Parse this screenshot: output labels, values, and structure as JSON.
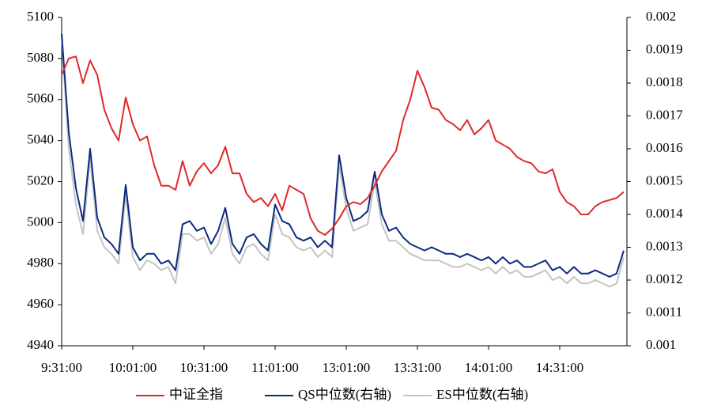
{
  "chart_data": {
    "type": "line",
    "categories": [
      "9:31:00",
      null,
      null,
      null,
      null,
      null,
      null,
      null,
      null,
      null,
      "10:01:00",
      null,
      null,
      null,
      null,
      null,
      null,
      null,
      null,
      null,
      "10:31:00",
      null,
      null,
      null,
      null,
      null,
      null,
      null,
      null,
      null,
      "11:01:00",
      null,
      null,
      null,
      null,
      null,
      null,
      null,
      null,
      null,
      "13:01:00",
      null,
      null,
      null,
      null,
      null,
      null,
      null,
      null,
      null,
      "13:31:00",
      null,
      null,
      null,
      null,
      null,
      null,
      null,
      null,
      null,
      "14:01:00",
      null,
      null,
      null,
      null,
      null,
      null,
      null,
      null,
      null,
      "14:31:00",
      null,
      null,
      null,
      null,
      null,
      null,
      null,
      null,
      null
    ],
    "ylim": [
      4940,
      5100
    ],
    "yticks": [
      4940,
      4960,
      4980,
      5000,
      5020,
      5040,
      5060,
      5080,
      5100
    ],
    "y2lim": [
      0.001,
      0.002
    ],
    "y2ticks": [
      0.001,
      0.0011,
      0.0012,
      0.0013,
      0.0014,
      0.0015,
      0.0016,
      0.0017,
      0.0018,
      0.0019,
      0.002
    ],
    "legend": "bottom",
    "grid": false,
    "series": [
      {
        "name": "中证全指",
        "color": "#e0282a",
        "values": [
          5072,
          5080,
          5081,
          5068,
          5079,
          5072,
          5055,
          5046,
          5040,
          5061,
          5048,
          5040,
          5042,
          5028,
          5018,
          5018,
          5016,
          5030,
          5018,
          5025,
          5029,
          5024,
          5028,
          5037,
          5024,
          5024,
          5014,
          5010,
          5012,
          5008,
          5014,
          5006,
          5018,
          5016,
          5014,
          5002,
          4996,
          4994,
          4997,
          5002,
          5008,
          5010,
          5009,
          5012,
          5018,
          5025,
          5030,
          5035,
          5050,
          5060,
          5074,
          5066,
          5056,
          5055,
          5050,
          5048,
          5045,
          5050,
          5043,
          5046,
          5050,
          5040,
          5038,
          5036,
          5032,
          5030,
          5029,
          5025,
          5024,
          5026,
          5015,
          5010,
          5008,
          5004,
          5004,
          5008,
          5010,
          5011,
          5012,
          5015
        ]
      },
      {
        "name": "QS中位数(右轴)",
        "color": "#0c2a80",
        "axis": "y2",
        "values": [
          0.00195,
          0.00165,
          0.00148,
          0.00138,
          0.0016,
          0.00139,
          0.00133,
          0.00131,
          0.00128,
          0.00149,
          0.0013,
          0.00126,
          0.00128,
          0.00128,
          0.00125,
          0.00126,
          0.00123,
          0.00137,
          0.00138,
          0.00135,
          0.00136,
          0.00131,
          0.00135,
          0.00142,
          0.00131,
          0.00128,
          0.00133,
          0.00134,
          0.00131,
          0.00129,
          0.00143,
          0.00138,
          0.00137,
          0.00133,
          0.00132,
          0.00133,
          0.0013,
          0.00132,
          0.0013,
          0.00158,
          0.00145,
          0.00138,
          0.00139,
          0.00141,
          0.00153,
          0.0014,
          0.00135,
          0.00136,
          0.00133,
          0.00131,
          0.0013,
          0.00129,
          0.0013,
          0.00129,
          0.00128,
          0.00128,
          0.00127,
          0.00128,
          0.00127,
          0.00126,
          0.00127,
          0.00125,
          0.00127,
          0.00125,
          0.00126,
          0.00124,
          0.00124,
          0.00125,
          0.00126,
          0.00123,
          0.00124,
          0.00122,
          0.00124,
          0.00122,
          0.00122,
          0.00123,
          0.00122,
          0.00121,
          0.00122,
          0.00129
        ]
      },
      {
        "name": "ES中位数(右轴)",
        "color": "#c4c4c4",
        "axis": "y2",
        "values": [
          0.00194,
          0.0016,
          0.00143,
          0.00134,
          0.00157,
          0.00135,
          0.0013,
          0.00128,
          0.00125,
          0.00146,
          0.00127,
          0.00123,
          0.00126,
          0.00125,
          0.00123,
          0.00124,
          0.00119,
          0.00134,
          0.00134,
          0.00132,
          0.00133,
          0.00128,
          0.00131,
          0.00139,
          0.00128,
          0.00125,
          0.0013,
          0.00131,
          0.00128,
          0.00126,
          0.0014,
          0.00134,
          0.00133,
          0.0013,
          0.00129,
          0.0013,
          0.00127,
          0.00129,
          0.00127,
          0.00155,
          0.00142,
          0.00135,
          0.00136,
          0.00137,
          0.0015,
          0.00137,
          0.00132,
          0.00132,
          0.0013,
          0.00128,
          0.00127,
          0.00126,
          0.00126,
          0.00126,
          0.00125,
          0.00124,
          0.00124,
          0.00125,
          0.00124,
          0.00123,
          0.00124,
          0.00122,
          0.00124,
          0.00122,
          0.00123,
          0.00121,
          0.00121,
          0.00122,
          0.00123,
          0.0012,
          0.00121,
          0.00119,
          0.00121,
          0.00119,
          0.00119,
          0.0012,
          0.00119,
          0.00118,
          0.00119,
          0.00127
        ]
      }
    ]
  }
}
